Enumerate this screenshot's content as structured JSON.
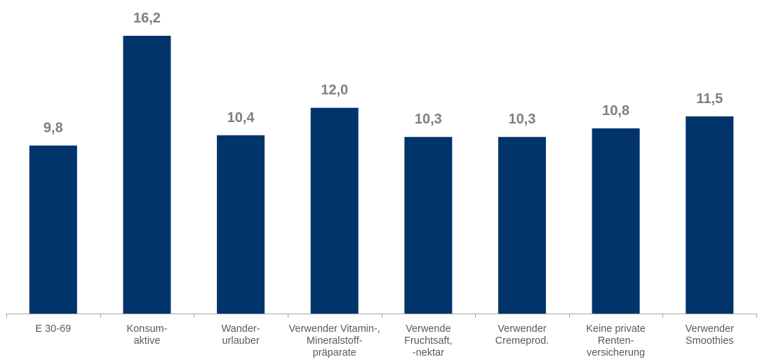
{
  "colors": {
    "bar": "#00346b",
    "axis": "#a6a6a6",
    "value_label": "#7f7f7f",
    "category_label": "#595959"
  },
  "chart_data": {
    "type": "bar",
    "categories": [
      [
        "E 30-69"
      ],
      [
        "Konsum-",
        "aktive"
      ],
      [
        "Wander-",
        "urlauber"
      ],
      [
        "Verwender Vitamin-,",
        "Mineralstoff-",
        "präparate"
      ],
      [
        "Verwende",
        "Fruchtsaft,",
        "-nektar"
      ],
      [
        "Verwender",
        "Cremeprod."
      ],
      [
        "Keine private",
        "Renten-",
        "versicherung"
      ],
      [
        "Verwender",
        "Smoothies"
      ]
    ],
    "values": [
      9.8,
      16.2,
      10.4,
      12.0,
      10.3,
      10.3,
      10.8,
      11.5
    ],
    "value_labels": [
      "9,8",
      "16,2",
      "10,4",
      "12,0",
      "10,3",
      "10,3",
      "10,8",
      "11,5"
    ],
    "ylim": [
      0,
      16.2
    ],
    "grid": false,
    "legend": "none"
  }
}
